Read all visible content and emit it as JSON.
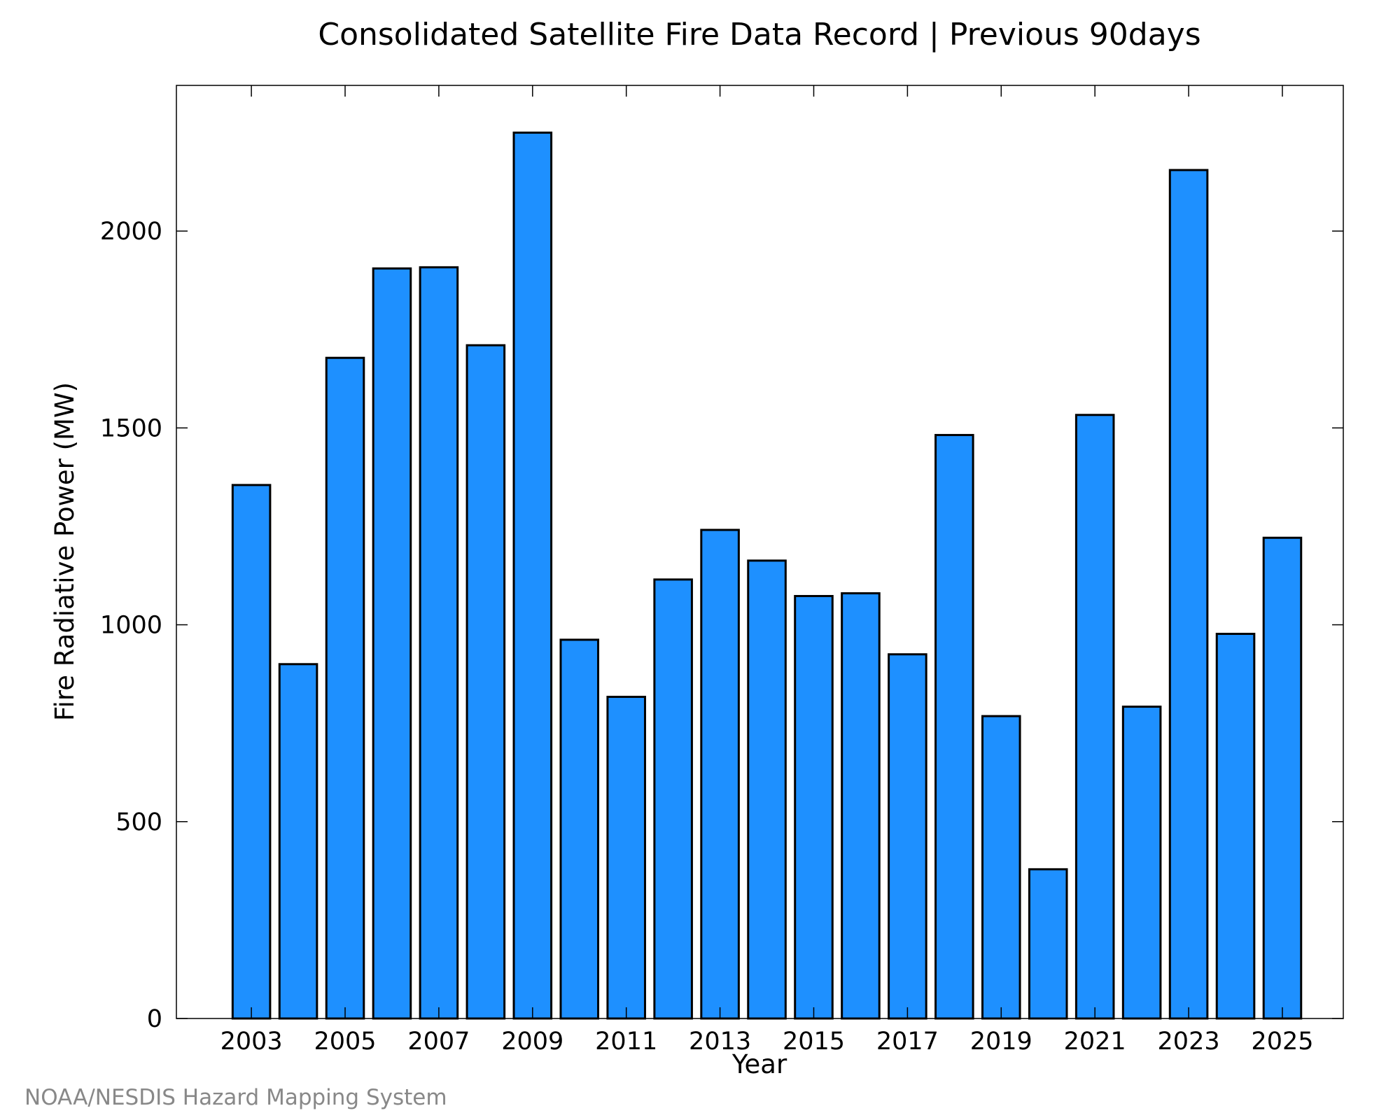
{
  "chart_data": {
    "type": "bar",
    "title": "Consolidated Satellite Fire Data Record | Previous 90days",
    "xlabel": "Year",
    "ylabel": "Fire Radiative Power (MW)",
    "ylim": [
      0,
      2370
    ],
    "xlim": [
      2001.4,
      2026.3
    ],
    "yticks": [
      0,
      500,
      1000,
      1500,
      2000
    ],
    "xticks": [
      2003,
      2005,
      2007,
      2009,
      2011,
      2013,
      2015,
      2017,
      2019,
      2021,
      2023,
      2025
    ],
    "categories": [
      2003,
      2004,
      2005,
      2006,
      2007,
      2008,
      2009,
      2010,
      2011,
      2012,
      2013,
      2014,
      2015,
      2016,
      2017,
      2018,
      2019,
      2020,
      2021,
      2022,
      2023,
      2024,
      2025
    ],
    "values": [
      1355,
      900,
      1678,
      1905,
      1908,
      1710,
      2250,
      962,
      817,
      1115,
      1241,
      1163,
      1073,
      1080,
      925,
      1482,
      768,
      379,
      1533,
      792,
      2155,
      977,
      1221
    ],
    "grid": false,
    "legend": "none",
    "bar_color": "#1e90ff",
    "edge_color": "#000000"
  },
  "footer": {
    "credit": "NOAA/NESDIS Hazard Mapping System"
  }
}
